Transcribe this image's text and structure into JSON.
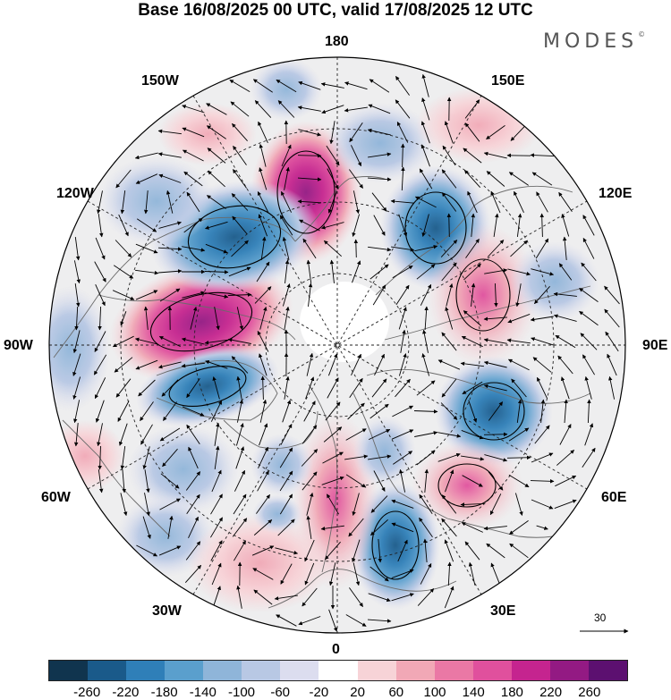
{
  "title": "Base 16/08/2025 00 UTC, valid 17/08/2025 12 UTC",
  "logo": "MODES",
  "logo_mark": "©",
  "longitude_labels": {
    "top": "180",
    "bottom": "0",
    "left": "90W",
    "right": "90E",
    "upper_left_1": "150W",
    "upper_left_2": "120W",
    "upper_right_1": "150E",
    "upper_right_2": "120E",
    "lower_left_1": "60W",
    "lower_left_2": "30W",
    "lower_right_1": "60E",
    "lower_right_2": "30E"
  },
  "vector_scale": "30",
  "colorbar": {
    "ticks": [
      "-260",
      "-220",
      "-180",
      "-140",
      "-100",
      "-60",
      "-20",
      "20",
      "60",
      "100",
      "140",
      "180",
      "220",
      "260"
    ],
    "colors": [
      "#10344e",
      "#1a5a8a",
      "#2f7fb8",
      "#5a9fcd",
      "#8fb5d9",
      "#b8c8e4",
      "#dcddef",
      "#ffffff",
      "#f7d3d7",
      "#f1a8b6",
      "#ea78a5",
      "#e0509d",
      "#c5248f",
      "#931a83",
      "#5c1070"
    ]
  },
  "anomalies": [
    {
      "name": "pos-anomaly-chukchi",
      "value": 200
    },
    {
      "name": "pos-anomaly-canada-west",
      "value": 260
    },
    {
      "name": "neg-anomaly-alaska-gulf",
      "value": -180
    },
    {
      "name": "neg-anomaly-east-siberia",
      "value": -180
    },
    {
      "name": "pos-anomaly-central-siberia",
      "value": 100
    },
    {
      "name": "neg-anomaly-hudson",
      "value": -180
    },
    {
      "name": "neg-anomaly-west-siberia",
      "value": -140
    },
    {
      "name": "pos-anomaly-caspian",
      "value": 120
    },
    {
      "name": "neg-anomaly-europe",
      "value": -180
    },
    {
      "name": "pos-anomaly-greenland-sea",
      "value": 100
    },
    {
      "name": "neg-anomaly-labrador",
      "value": -100
    },
    {
      "name": "neg-anomaly-north-atlantic",
      "value": -100
    },
    {
      "name": "neg-anomaly-north-pacific",
      "value": -100
    },
    {
      "name": "neg-anomaly-bering",
      "value": -80
    },
    {
      "name": "pos-anomaly-atlantic-mid",
      "value": 60
    },
    {
      "name": "pos-anomaly-east-asia",
      "value": 60
    }
  ]
}
